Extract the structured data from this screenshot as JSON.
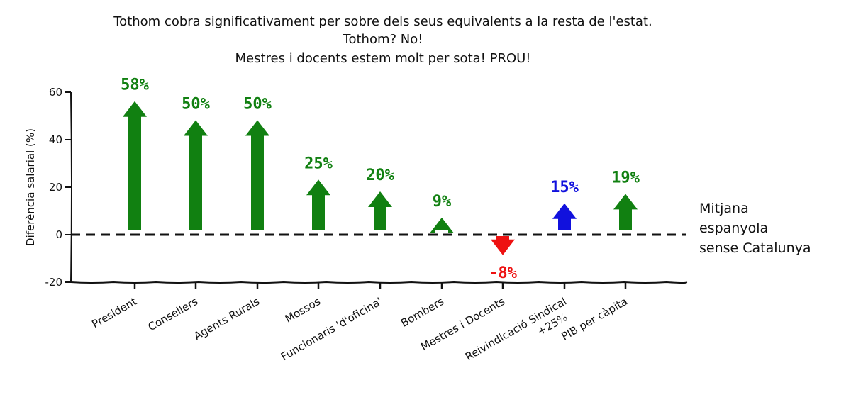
{
  "chart_data": {
    "type": "bar",
    "title_lines": [
      "Tothom cobra significativament per sobre dels seus equivalents a la resta de l'estat.",
      "Tothom? No!",
      "Mestres i docents estem molt per sota! PROU!"
    ],
    "xlabel": "",
    "ylabel": "Diferència salarial (%)",
    "ylim": [
      -20,
      60
    ],
    "yticks": [
      60,
      40,
      20,
      0,
      -20
    ],
    "categories": [
      "President",
      "Consellers",
      "Agents Rurals",
      "Mossos",
      "Funcionaris 'd'oficina'",
      "Bombers",
      "Mestres i Docents",
      "Reivindicació Sindical\n+25%",
      "PIB per càpita"
    ],
    "values": [
      58,
      50,
      50,
      25,
      20,
      9,
      -8,
      15,
      19
    ],
    "value_labels": [
      "58%",
      "50%",
      "50%",
      "25%",
      "20%",
      "9%",
      "-8%",
      "15%",
      "19%"
    ],
    "colors": [
      "#118011",
      "#118011",
      "#118011",
      "#118011",
      "#118011",
      "#118011",
      "#ee1111",
      "#1111dd",
      "#118011"
    ],
    "reference_line": {
      "value": 0,
      "style": "dashed",
      "label_lines": [
        "Mitjana",
        "espanyola",
        "sense Catalunya"
      ]
    },
    "grid": false,
    "legend": "none"
  }
}
